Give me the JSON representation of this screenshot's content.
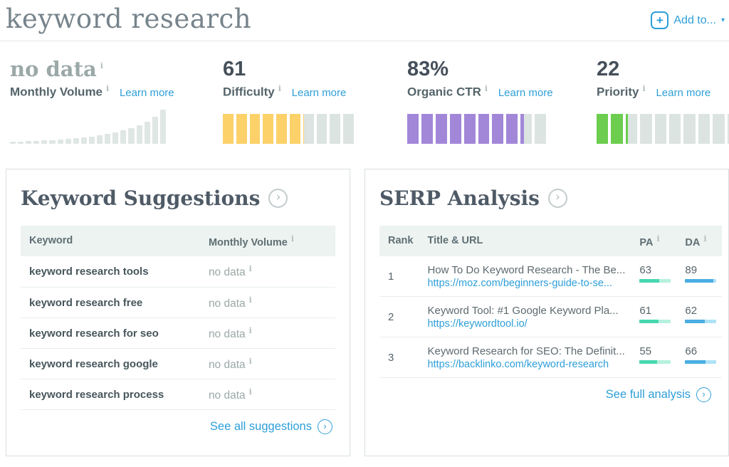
{
  "page_title": "keyword research",
  "toolbar": {
    "add_to_label": "Add to..."
  },
  "icons": {
    "info": "i",
    "chevron": "›",
    "plus": "+",
    "caret": "▾"
  },
  "metrics": {
    "volume": {
      "value": "no data",
      "label": "Monthly Volume",
      "learn_more": "Learn more",
      "histogram_bars": [
        3,
        3,
        4,
        4,
        5,
        5,
        6,
        7,
        8,
        9,
        10,
        12,
        14,
        16,
        19,
        22,
        26,
        31,
        38,
        48
      ],
      "bar_color": "#dfe7e4"
    },
    "difficulty": {
      "value": "61",
      "label": "Difficulty",
      "learn_more": "Learn more",
      "percent": 61,
      "segments": 10,
      "fill_color": "#fcd169"
    },
    "organic_ctr": {
      "value": "83%",
      "label": "Organic CTR",
      "learn_more": "Learn more",
      "percent": 83,
      "segments": 10,
      "fill_color": "#a287d9"
    },
    "priority": {
      "value": "22",
      "label": "Priority",
      "learn_more": "Learn more",
      "percent": 22,
      "segments": 10,
      "fill_color": "#6ccd4e"
    },
    "segment_empty_color": "#dce4e2"
  },
  "suggestions": {
    "title": "Keyword Suggestions",
    "col_keyword": "Keyword",
    "col_volume": "Monthly Volume",
    "rows": [
      {
        "keyword": "keyword research tools",
        "volume": "no data"
      },
      {
        "keyword": "keyword research free",
        "volume": "no data"
      },
      {
        "keyword": "keyword research for seo",
        "volume": "no data"
      },
      {
        "keyword": "keyword research google",
        "volume": "no data"
      },
      {
        "keyword": "keyword research process",
        "volume": "no data"
      }
    ],
    "see_all": "See all suggestions"
  },
  "serp": {
    "title": "SERP Analysis",
    "col_rank": "Rank",
    "col_title": "Title & URL",
    "col_pa": "PA",
    "col_da": "DA",
    "rows": [
      {
        "rank": "1",
        "title": "How To Do Keyword Research - The Be...",
        "url": "https://moz.com/beginners-guide-to-se...",
        "pa": 63,
        "da": 89
      },
      {
        "rank": "2",
        "title": "Keyword Tool: #1 Google Keyword Pla...",
        "url": "https://keywordtool.io/",
        "pa": 61,
        "da": 62
      },
      {
        "rank": "3",
        "title": "Keyword Research for SEO: The Definit...",
        "url": "https://backlinko.com/keyword-research",
        "pa": 55,
        "da": 66
      }
    ],
    "see_full": "See full analysis",
    "pa_fill": "#47d7ae",
    "pa_track": "#b5f1de",
    "da_fill": "#4aaee2",
    "da_track": "#aee2f7"
  },
  "colors": {
    "link": "#2e9fd8"
  }
}
